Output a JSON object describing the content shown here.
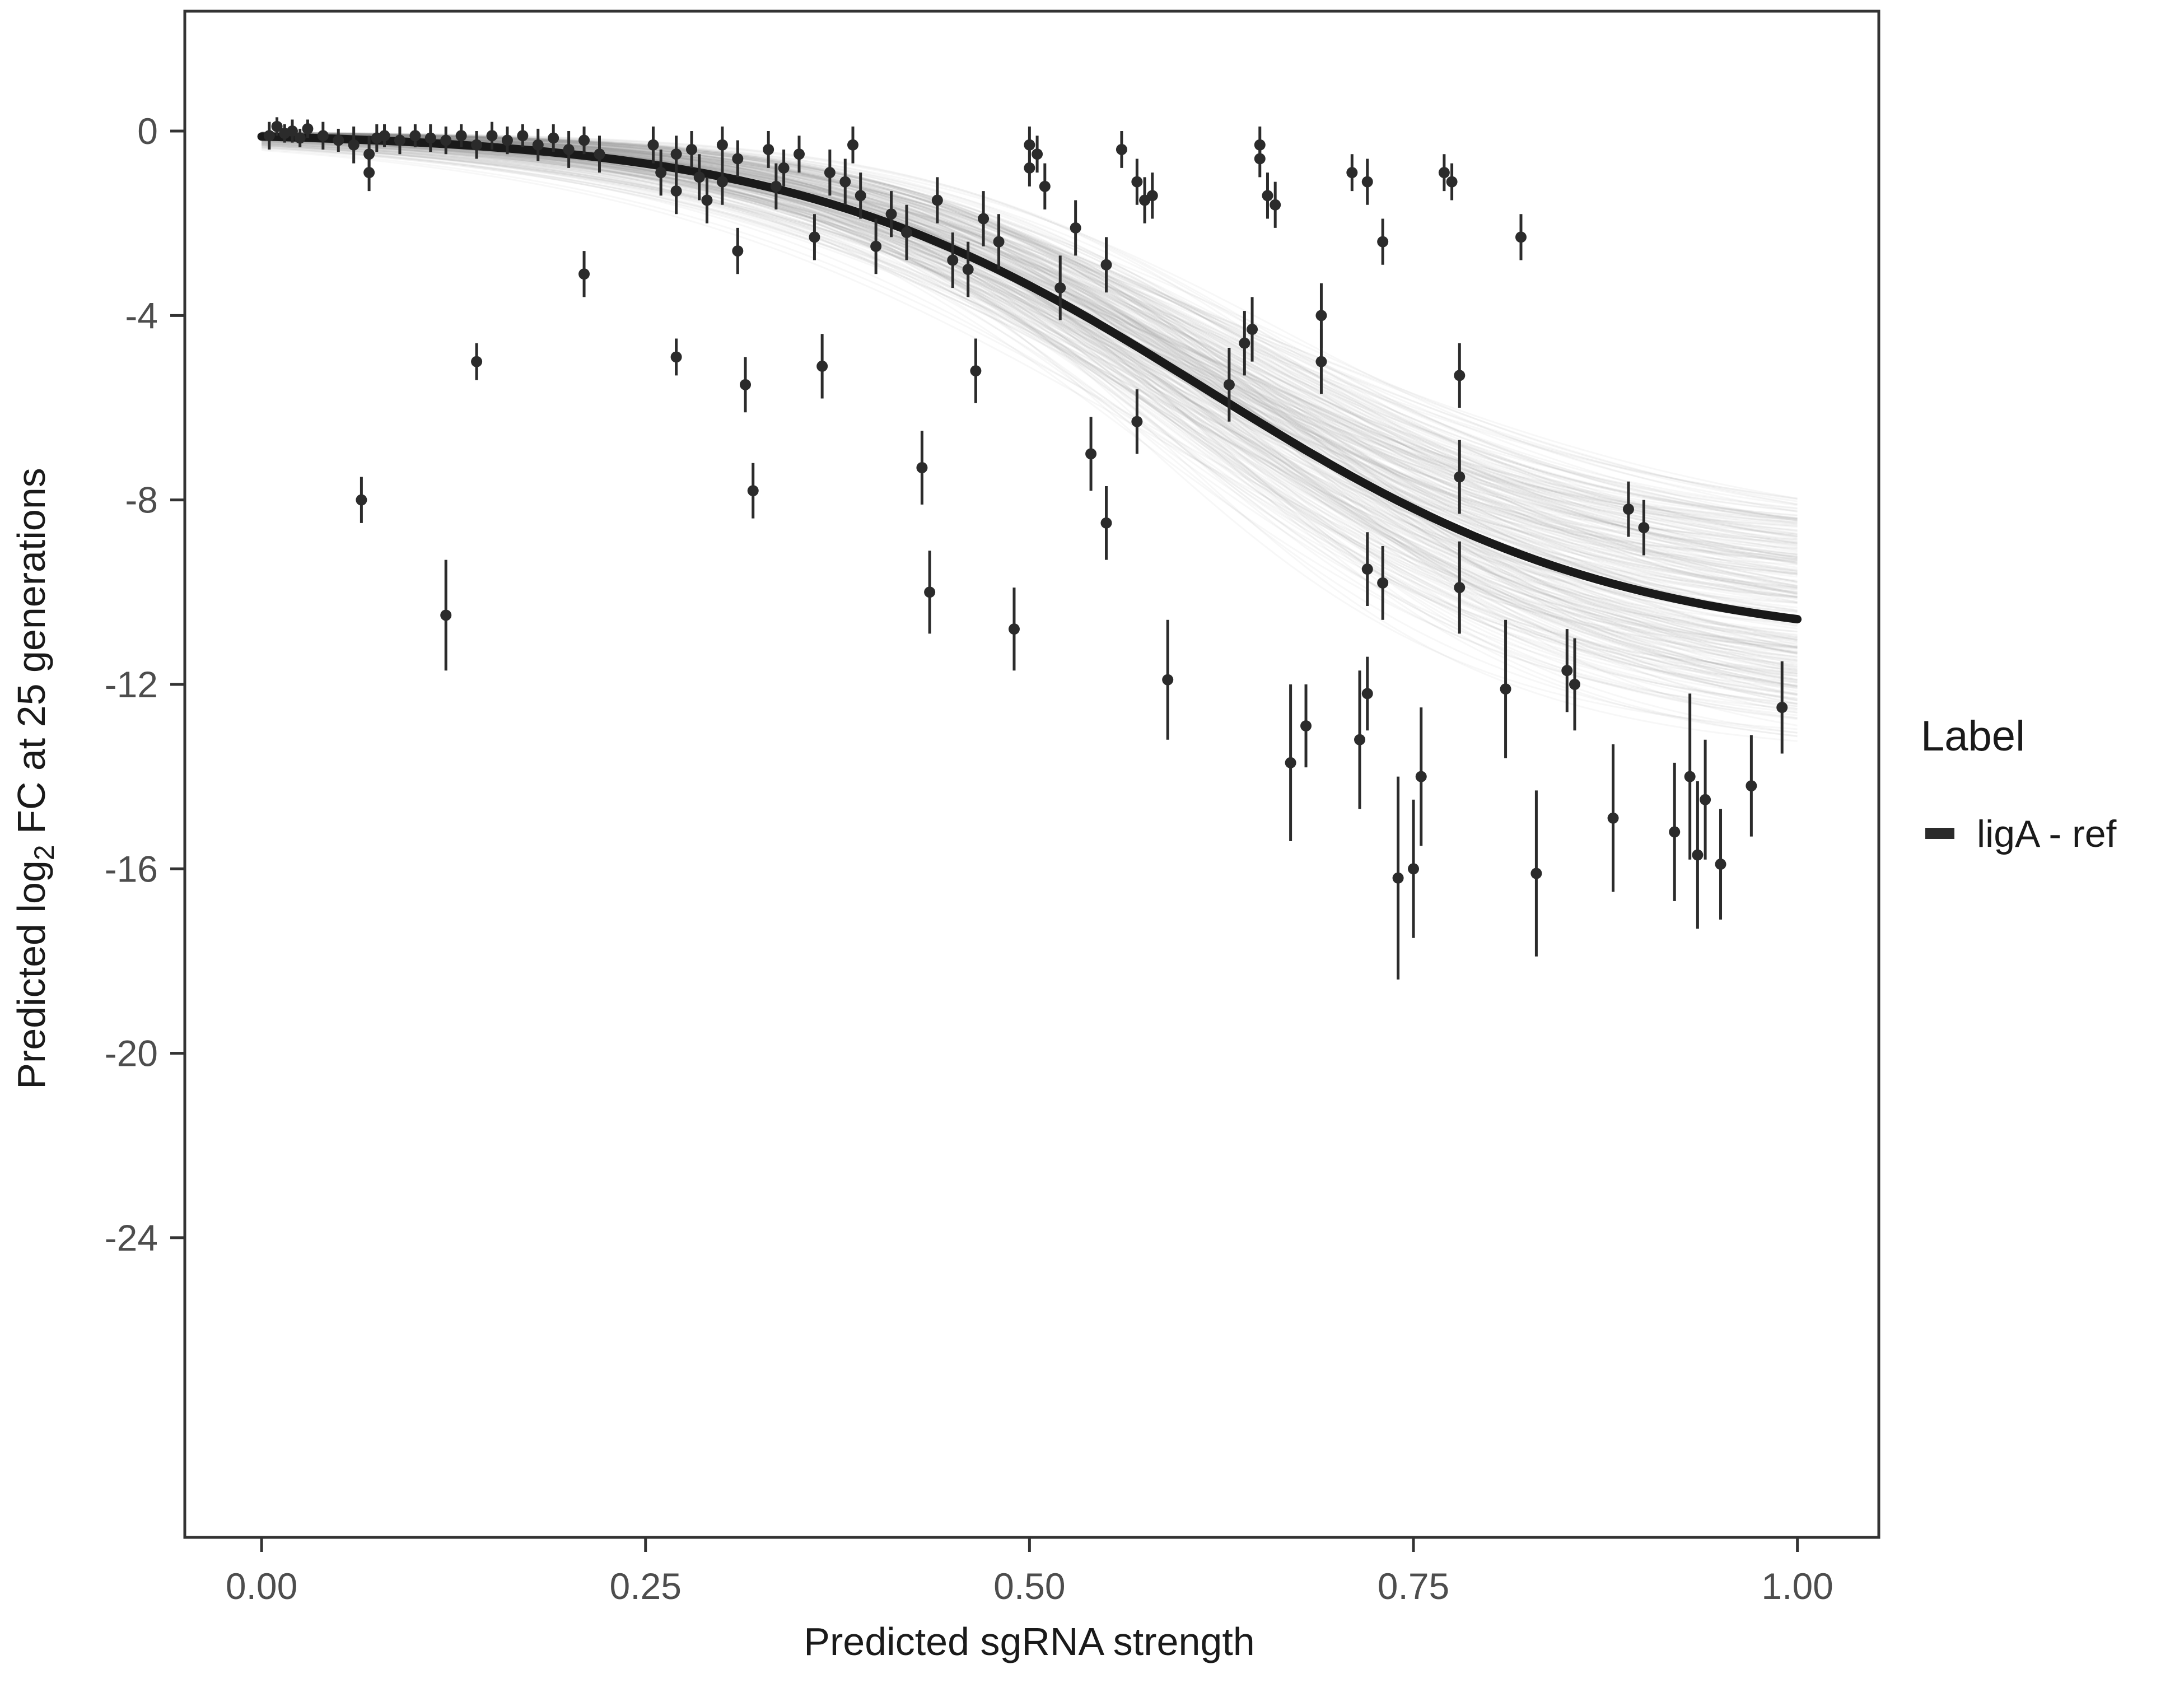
{
  "figure": {
    "background": "#ffffff",
    "legend": {
      "title": "Label",
      "items": [
        {
          "label": "ligA - ref",
          "color": "#2b2b2b",
          "marker": "thick-line"
        }
      ]
    }
  },
  "chart_data": {
    "type": "scatter",
    "title": "",
    "xlabel": "Predicted sgRNA strength",
    "ylabel": "Predicted log2 FC at 25 generations",
    "ylabel_rich": {
      "pre": "Predicted  log",
      "sub": "2",
      "post": " FC at 25 generations"
    },
    "xlim": [
      -0.05,
      1.053
    ],
    "ylim": [
      -30.5,
      2.6
    ],
    "x_ticks": [
      0,
      0.25,
      0.5,
      0.75,
      1.0
    ],
    "x_tick_labels": [
      "0.00",
      "0.25",
      "0.50",
      "0.75",
      "1.00"
    ],
    "y_ticks": [
      0,
      -4,
      -8,
      -12,
      -16,
      -20,
      -24
    ],
    "y_tick_labels": [
      "0",
      "-4",
      "-8",
      "-12",
      "-16",
      "-20",
      "-24"
    ],
    "grid": false,
    "legend_position": "right",
    "curve": {
      "model": "logistic",
      "L": 11.2,
      "x0": 0.615,
      "k": 7.4,
      "x_start": 0.0,
      "x_end": 1.0,
      "color": "#1a1a1a",
      "width": 15
    },
    "ensemble": {
      "count": 280,
      "L_range": [
        8.6,
        13.6
      ],
      "x0_range": [
        0.56,
        0.67
      ],
      "k_range": [
        5.8,
        9.2
      ],
      "color": "#8c8c8c",
      "opacity": 0.07,
      "width": 3
    },
    "point_color": "#2b2b2b",
    "point_radius": 10,
    "points": [
      [
        0.005,
        -0.1,
        0.3
      ],
      [
        0.01,
        0.1,
        0.2
      ],
      [
        0.015,
        -0.05,
        0.2
      ],
      [
        0.02,
        0.0,
        0.25
      ],
      [
        0.025,
        -0.15,
        0.2
      ],
      [
        0.03,
        0.05,
        0.2
      ],
      [
        0.04,
        -0.1,
        0.3
      ],
      [
        0.05,
        -0.2,
        0.25
      ],
      [
        0.06,
        -0.3,
        0.4
      ],
      [
        0.065,
        -8.0,
        0.5
      ],
      [
        0.07,
        -0.5,
        0.4
      ],
      [
        0.07,
        -0.9,
        0.4
      ],
      [
        0.075,
        -0.15,
        0.3
      ],
      [
        0.08,
        -0.1,
        0.25
      ],
      [
        0.09,
        -0.2,
        0.3
      ],
      [
        0.1,
        -0.1,
        0.25
      ],
      [
        0.11,
        -0.15,
        0.3
      ],
      [
        0.12,
        -0.2,
        0.3
      ],
      [
        0.12,
        -10.5,
        1.2
      ],
      [
        0.13,
        -0.1,
        0.25
      ],
      [
        0.14,
        -0.3,
        0.3
      ],
      [
        0.14,
        -5.0,
        0.4
      ],
      [
        0.15,
        -0.1,
        0.3
      ],
      [
        0.16,
        -0.2,
        0.3
      ],
      [
        0.17,
        -0.1,
        0.25
      ],
      [
        0.18,
        -0.3,
        0.35
      ],
      [
        0.19,
        -0.15,
        0.3
      ],
      [
        0.2,
        -0.4,
        0.4
      ],
      [
        0.21,
        -0.2,
        0.3
      ],
      [
        0.21,
        -3.1,
        0.5
      ],
      [
        0.22,
        -0.5,
        0.4
      ],
      [
        0.255,
        -0.3,
        0.4
      ],
      [
        0.26,
        -0.9,
        0.5
      ],
      [
        0.27,
        -0.5,
        0.4
      ],
      [
        0.27,
        -1.3,
        0.5
      ],
      [
        0.27,
        -4.9,
        0.4
      ],
      [
        0.28,
        -0.4,
        0.4
      ],
      [
        0.285,
        -1.0,
        0.5
      ],
      [
        0.29,
        -1.5,
        0.5
      ],
      [
        0.3,
        -0.3,
        0.4
      ],
      [
        0.3,
        -1.1,
        0.5
      ],
      [
        0.31,
        -2.6,
        0.5
      ],
      [
        0.31,
        -0.6,
        0.4
      ],
      [
        0.315,
        -5.5,
        0.6
      ],
      [
        0.32,
        -7.8,
        0.6
      ],
      [
        0.33,
        -0.4,
        0.4
      ],
      [
        0.335,
        -1.2,
        0.5
      ],
      [
        0.34,
        -0.8,
        0.4
      ],
      [
        0.35,
        -0.5,
        0.4
      ],
      [
        0.36,
        -2.3,
        0.5
      ],
      [
        0.365,
        -5.1,
        0.7
      ],
      [
        0.37,
        -0.9,
        0.5
      ],
      [
        0.38,
        -1.1,
        0.5
      ],
      [
        0.385,
        -0.3,
        0.4
      ],
      [
        0.39,
        -1.4,
        0.5
      ],
      [
        0.4,
        -2.5,
        0.6
      ],
      [
        0.41,
        -1.8,
        0.5
      ],
      [
        0.42,
        -2.2,
        0.6
      ],
      [
        0.43,
        -7.3,
        0.8
      ],
      [
        0.435,
        -10.0,
        0.9
      ],
      [
        0.44,
        -1.5,
        0.5
      ],
      [
        0.45,
        -2.8,
        0.6
      ],
      [
        0.46,
        -3.0,
        0.6
      ],
      [
        0.465,
        -5.2,
        0.7
      ],
      [
        0.47,
        -1.9,
        0.6
      ],
      [
        0.48,
        -2.4,
        0.6
      ],
      [
        0.49,
        -10.8,
        0.9
      ],
      [
        0.5,
        -0.3,
        0.4
      ],
      [
        0.5,
        -0.8,
        0.4
      ],
      [
        0.505,
        -0.5,
        0.4
      ],
      [
        0.51,
        -1.2,
        0.5
      ],
      [
        0.52,
        -3.4,
        0.7
      ],
      [
        0.53,
        -2.1,
        0.6
      ],
      [
        0.54,
        -7.0,
        0.8
      ],
      [
        0.55,
        -8.5,
        0.8
      ],
      [
        0.55,
        -2.9,
        0.6
      ],
      [
        0.56,
        -0.4,
        0.4
      ],
      [
        0.57,
        -1.1,
        0.5
      ],
      [
        0.57,
        -6.3,
        0.7
      ],
      [
        0.575,
        -1.5,
        0.5
      ],
      [
        0.58,
        -1.4,
        0.5
      ],
      [
        0.59,
        -11.9,
        1.3
      ],
      [
        0.63,
        -5.5,
        0.8
      ],
      [
        0.64,
        -4.6,
        0.7
      ],
      [
        0.645,
        -4.3,
        0.7
      ],
      [
        0.65,
        -0.3,
        0.4
      ],
      [
        0.65,
        -0.6,
        0.4
      ],
      [
        0.655,
        -1.4,
        0.5
      ],
      [
        0.66,
        -1.6,
        0.5
      ],
      [
        0.67,
        -13.7,
        1.7
      ],
      [
        0.68,
        -12.9,
        0.9
      ],
      [
        0.69,
        -4.0,
        0.7
      ],
      [
        0.69,
        -5.0,
        0.7
      ],
      [
        0.71,
        -0.9,
        0.4
      ],
      [
        0.715,
        -13.2,
        1.5
      ],
      [
        0.72,
        -1.1,
        0.5
      ],
      [
        0.72,
        -12.2,
        0.8
      ],
      [
        0.72,
        -9.5,
        0.8
      ],
      [
        0.73,
        -9.8,
        0.8
      ],
      [
        0.73,
        -2.4,
        0.5
      ],
      [
        0.74,
        -16.2,
        2.2
      ],
      [
        0.75,
        -16.0,
        1.5
      ],
      [
        0.755,
        -14.0,
        1.5
      ],
      [
        0.77,
        -0.9,
        0.4
      ],
      [
        0.775,
        -1.1,
        0.4
      ],
      [
        0.78,
        -5.3,
        0.7
      ],
      [
        0.78,
        -7.5,
        0.8
      ],
      [
        0.78,
        -9.9,
        1.0
      ],
      [
        0.81,
        -12.1,
        1.5
      ],
      [
        0.82,
        -2.3,
        0.5
      ],
      [
        0.83,
        -16.1,
        1.8
      ],
      [
        0.85,
        -11.7,
        0.9
      ],
      [
        0.855,
        -12.0,
        1.0
      ],
      [
        0.88,
        -14.9,
        1.6
      ],
      [
        0.89,
        -8.2,
        0.6
      ],
      [
        0.9,
        -8.6,
        0.6
      ],
      [
        0.92,
        -15.2,
        1.5
      ],
      [
        0.93,
        -14.0,
        1.8
      ],
      [
        0.935,
        -15.7,
        1.6
      ],
      [
        0.94,
        -14.5,
        1.3
      ],
      [
        0.95,
        -15.9,
        1.2
      ],
      [
        0.97,
        -14.2,
        1.1
      ],
      [
        0.99,
        -12.5,
        1.0
      ]
    ]
  },
  "layout_labels": {
    "panel": "plot-panel"
  }
}
